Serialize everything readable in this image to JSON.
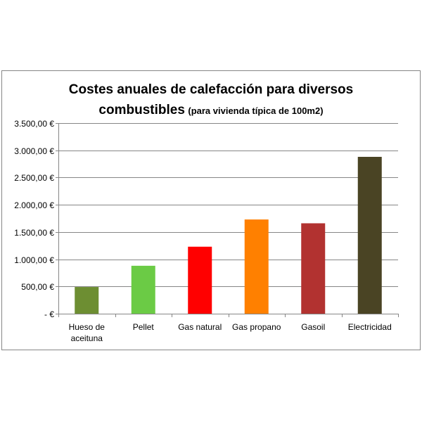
{
  "chart_data": {
    "type": "bar",
    "title": "Costes anuales de calefacción para diversos combustibles",
    "subtitle": "(para vivienda típica de 100m2)",
    "categories": [
      "Hueso de aceituna",
      "Pellet",
      "Gas natural",
      "Gas propano",
      "Gasoil",
      "Electricidad"
    ],
    "values": [
      490,
      880,
      1230,
      1730,
      1660,
      2880
    ],
    "colors": [
      "#6D8E32",
      "#6BCB45",
      "#FF0000",
      "#FF8000",
      "#B23230",
      "#4A4424"
    ],
    "ylim": [
      0,
      3500
    ],
    "yticks": [
      0,
      500,
      1000,
      1500,
      2000,
      2500,
      3000,
      3500
    ],
    "yticklabels": [
      "- €",
      "500,00 €",
      "1.000,00 €",
      "1.500,00 €",
      "2.000,00 €",
      "2.500,00 €",
      "3.000,00 €",
      "3.500,00 €"
    ],
    "grid": true,
    "legend": "none",
    "gridline_color": "#868686",
    "axis_color": "#868686"
  }
}
